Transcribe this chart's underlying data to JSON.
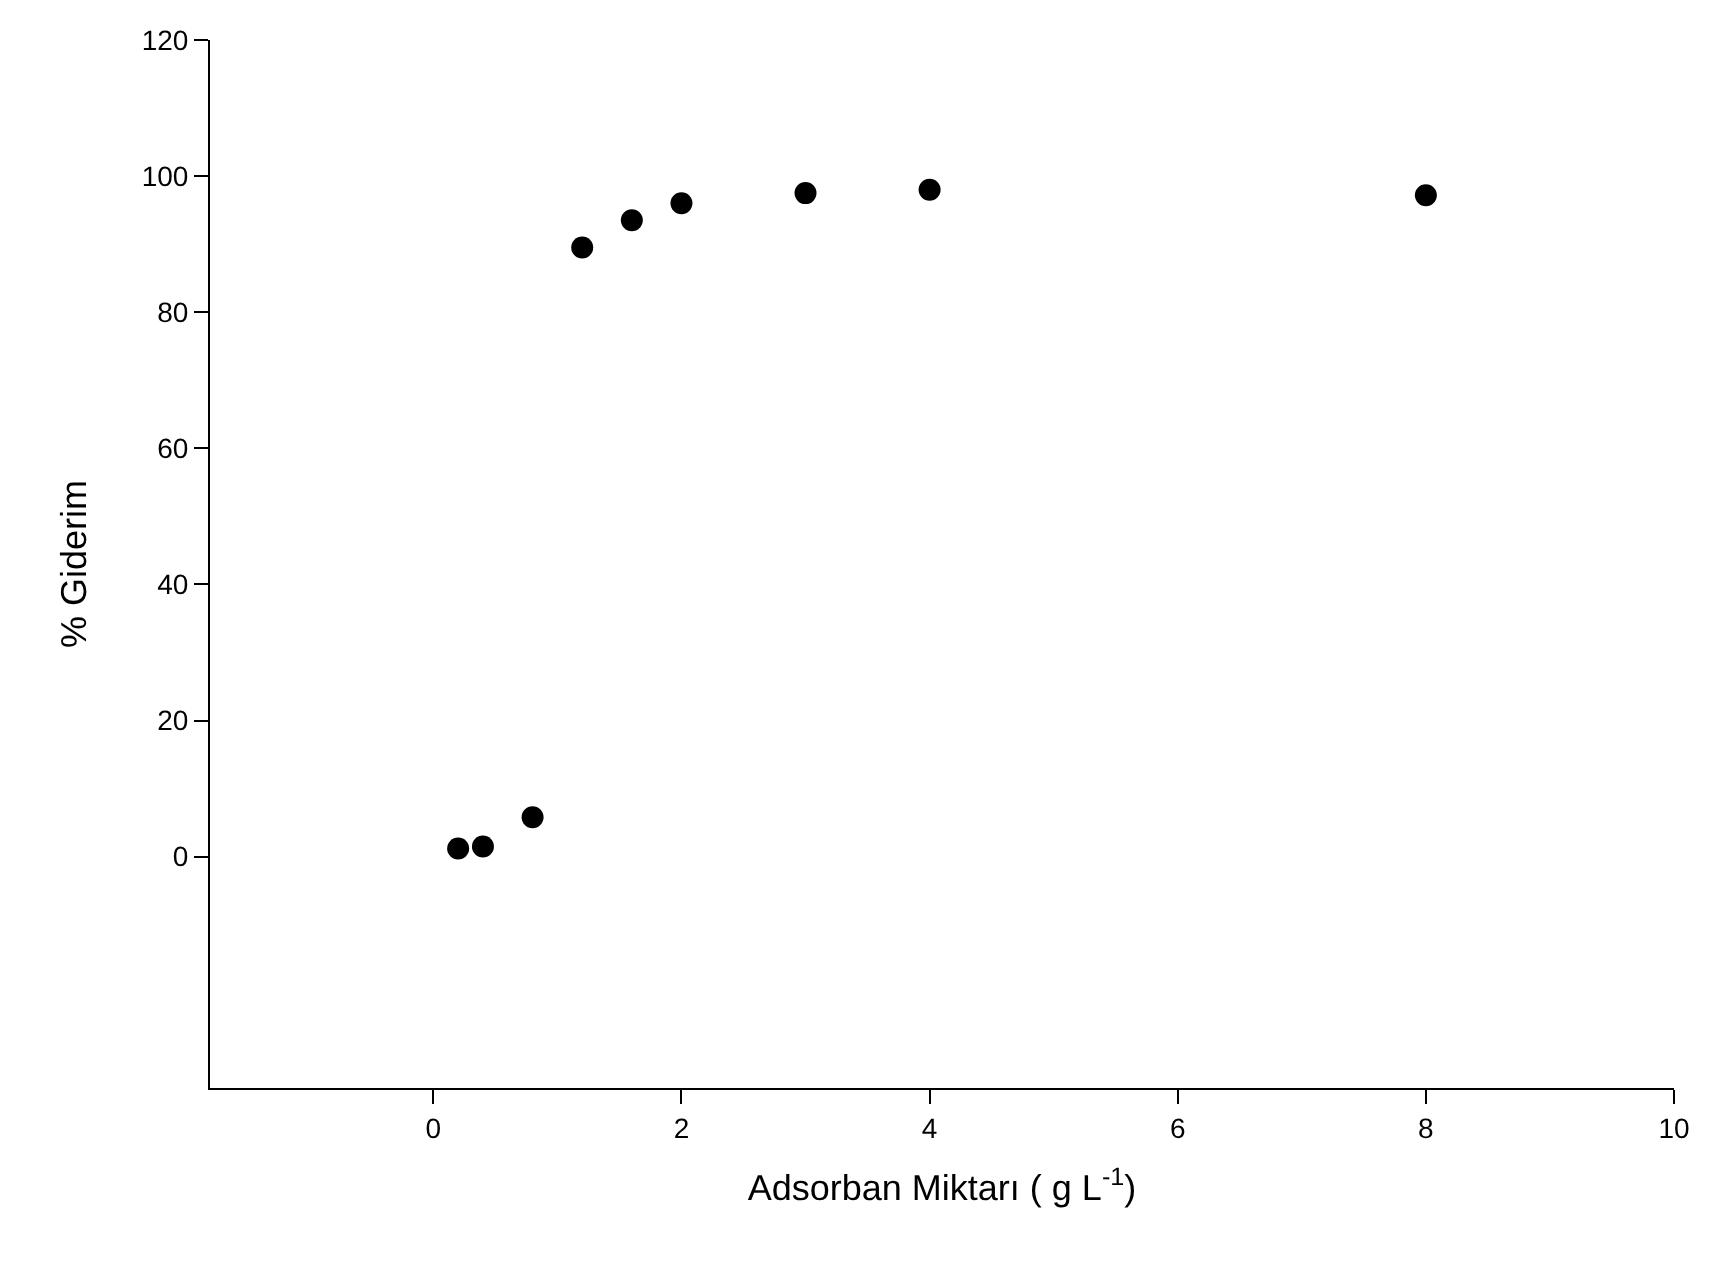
{
  "chart_data": {
    "type": "scatter",
    "xlabel": "Adsorban Miktarı ( g L$^{-1}$)",
    "ylabel": "% Giderim",
    "x": [
      0.2,
      0.4,
      0.8,
      1.2,
      1.6,
      2,
      3,
      4,
      8
    ],
    "series": [
      {
        "color": "#000000",
        "values": [
          1.2,
          1.5,
          5.8,
          89.5,
          93.5,
          96,
          97.5,
          98,
          97.2
        ]
      }
    ],
    "xlim": [
      -1.8,
      10
    ],
    "xticks": [
      0,
      2,
      4,
      6,
      8,
      10
    ],
    "ylim": [
      -34,
      120
    ],
    "yticks": [
      0,
      20,
      40,
      60,
      80,
      100,
      120
    ],
    "marker": "circle"
  }
}
